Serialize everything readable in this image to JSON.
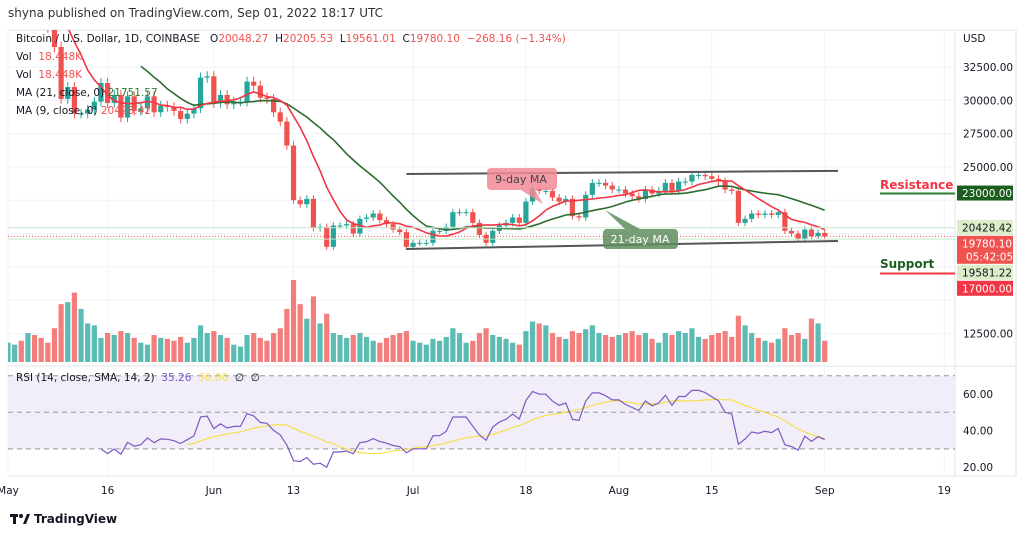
{
  "header": {
    "published": "shyna published on TradingView.com, Sep 01, 2022 18:17 UTC",
    "symbol": "Bitcoin / U.S. Dollar, 1D, COINBASE",
    "open_label": "O",
    "open": "20048.27",
    "high_label": "H",
    "high": "20205.53",
    "low_label": "L",
    "low": "19561.01",
    "close_label": "C",
    "close": "19780.10",
    "change": "−268.16 (−1.34%)",
    "vol1_label": "Vol",
    "vol1": "18.448K",
    "vol2_label": "Vol",
    "vol2": "18.448K",
    "ma21_label": "MA (21, close, 0)",
    "ma21": "21751.57",
    "ma9_label": "MA (9, close, 0)",
    "ma9": "20428.42"
  },
  "rsi_legend": {
    "label": "RSI (14, close, SMA, 14, 2)",
    "rsi": "35.26",
    "sma": "36.00",
    "extra1": "∅",
    "extra2": "∅"
  },
  "footer": {
    "brand": "TradingView"
  },
  "colors": {
    "up": "#26a69a",
    "down": "#ef5350",
    "ma9": "#f23645",
    "ma21": "#2e6b2e",
    "rsi": "#7e57c2",
    "rsi_sma": "#f5e04a",
    "rsi_band": "#ede7f6"
  },
  "chart_data": {
    "type": "candlestick",
    "currency": "USD",
    "start_date": "2022-05-01",
    "interval": "1D",
    "closes": [
      38400,
      38500,
      37700,
      39700,
      36500,
      36000,
      35500,
      34000,
      30100,
      31000,
      29000,
      29000,
      29300,
      29900,
      31300,
      29800,
      30400,
      28700,
      30300,
      29200,
      29400,
      30300,
      29100,
      29600,
      29500,
      29200,
      28600,
      29000,
      29400,
      31700,
      31800,
      29800,
      30400,
      29700,
      29900,
      29900,
      31400,
      31100,
      30200,
      30100,
      29100,
      28400,
      26600,
      22500,
      22200,
      22600,
      20400,
      20500,
      19000,
      20600,
      20600,
      20700,
      20000,
      21100,
      21200,
      21500,
      21000,
      20700,
      20300,
      20100,
      19000,
      19300,
      19300,
      19300,
      20200,
      20200,
      20500,
      21600,
      21600,
      21600,
      20800,
      19900,
      19300,
      20200,
      20600,
      20800,
      21200,
      20800,
      22400,
      23400,
      23200,
      23200,
      22700,
      22400,
      22600,
      21300,
      21200,
      22900,
      23800,
      23800,
      23600,
      23300,
      23300,
      23000,
      22800,
      22600,
      23300,
      23000,
      23200,
      23800,
      23200,
      23900,
      23900,
      24400,
      24400,
      24300,
      24100,
      23900,
      23300,
      23200,
      20800,
      21100,
      21500,
      21400,
      21500,
      21400,
      21600,
      20200,
      20000,
      19600,
      20300,
      19800,
      20048,
      19780
    ],
    "volumes": [
      20,
      18,
      22,
      30,
      28,
      25,
      20,
      35,
      60,
      62,
      72,
      55,
      40,
      38,
      25,
      30,
      28,
      32,
      30,
      25,
      20,
      18,
      28,
      25,
      24,
      22,
      26,
      20,
      25,
      38,
      30,
      32,
      28,
      25,
      18,
      16,
      28,
      30,
      25,
      22,
      30,
      35,
      55,
      85,
      60,
      45,
      68,
      40,
      50,
      30,
      28,
      25,
      28,
      30,
      26,
      22,
      20,
      25,
      28,
      30,
      32,
      22,
      20,
      18,
      24,
      22,
      26,
      35,
      30,
      20,
      22,
      30,
      35,
      28,
      26,
      24,
      20,
      18,
      32,
      42,
      40,
      38,
      30,
      26,
      24,
      32,
      30,
      34,
      38,
      30,
      28,
      26,
      28,
      30,
      32,
      28,
      30,
      24,
      20,
      30,
      28,
      32,
      30,
      35,
      26,
      24,
      28,
      30,
      32,
      26,
      48,
      38,
      30,
      25,
      22,
      20,
      24,
      35,
      28,
      30,
      24,
      45,
      40,
      22
    ],
    "y_axis_ticks": [
      32500,
      30000,
      27500,
      25000,
      22500,
      20000,
      17500,
      15000,
      12500
    ],
    "y_axis_visible_labels": [
      "32500.00",
      "30000.00",
      "27500.00",
      "25000.00",
      "12500.00"
    ],
    "price_labels": [
      {
        "text": "23000.00",
        "value": 23000,
        "color": "#1b5e20"
      },
      {
        "text": "20428.42",
        "value": 20428.42,
        "color": "#dcedc8"
      },
      {
        "text": "19780.10",
        "value": 19780.1,
        "color": "#ef5350",
        "countdown": "05:42:05"
      },
      {
        "text": "19581.22",
        "value": 19581.22,
        "color": "#dcedc8"
      },
      {
        "text": "17000.00",
        "value": 17000,
        "color": "#f23645"
      }
    ],
    "x_axis_labels": [
      {
        "text": "May",
        "date": "2022-05-01"
      },
      {
        "text": "16",
        "date": "2022-05-16"
      },
      {
        "text": "Jun",
        "date": "2022-06-01"
      },
      {
        "text": "13",
        "date": "2022-06-13"
      },
      {
        "text": "Jul",
        "date": "2022-07-01"
      },
      {
        "text": "18",
        "date": "2022-07-18"
      },
      {
        "text": "Aug",
        "date": "2022-08-01"
      },
      {
        "text": "15",
        "date": "2022-08-15"
      },
      {
        "text": "Sep",
        "date": "2022-09-01"
      },
      {
        "text": "19",
        "date": "2022-09-19"
      }
    ],
    "rsi_axis_ticks": [
      "60.00",
      "40.00",
      "20.00"
    ],
    "rsi_band": [
      30,
      70
    ],
    "moving_averages": [
      9,
      21
    ],
    "annotations": {
      "ma9_label": "9-day MA",
      "ma21_label": "21-day MA",
      "resistance_label": "Resistance",
      "resistance": 23000,
      "support_label": "Support",
      "support": 17000,
      "channel_upper": [
        {
          "date": "2022-06-30",
          "price": 24470
        },
        {
          "date": "2022-09-03",
          "price": 24700
        }
      ],
      "channel_lower": [
        {
          "date": "2022-06-30",
          "price": 18840
        },
        {
          "date": "2022-09-03",
          "price": 19440
        }
      ]
    }
  }
}
